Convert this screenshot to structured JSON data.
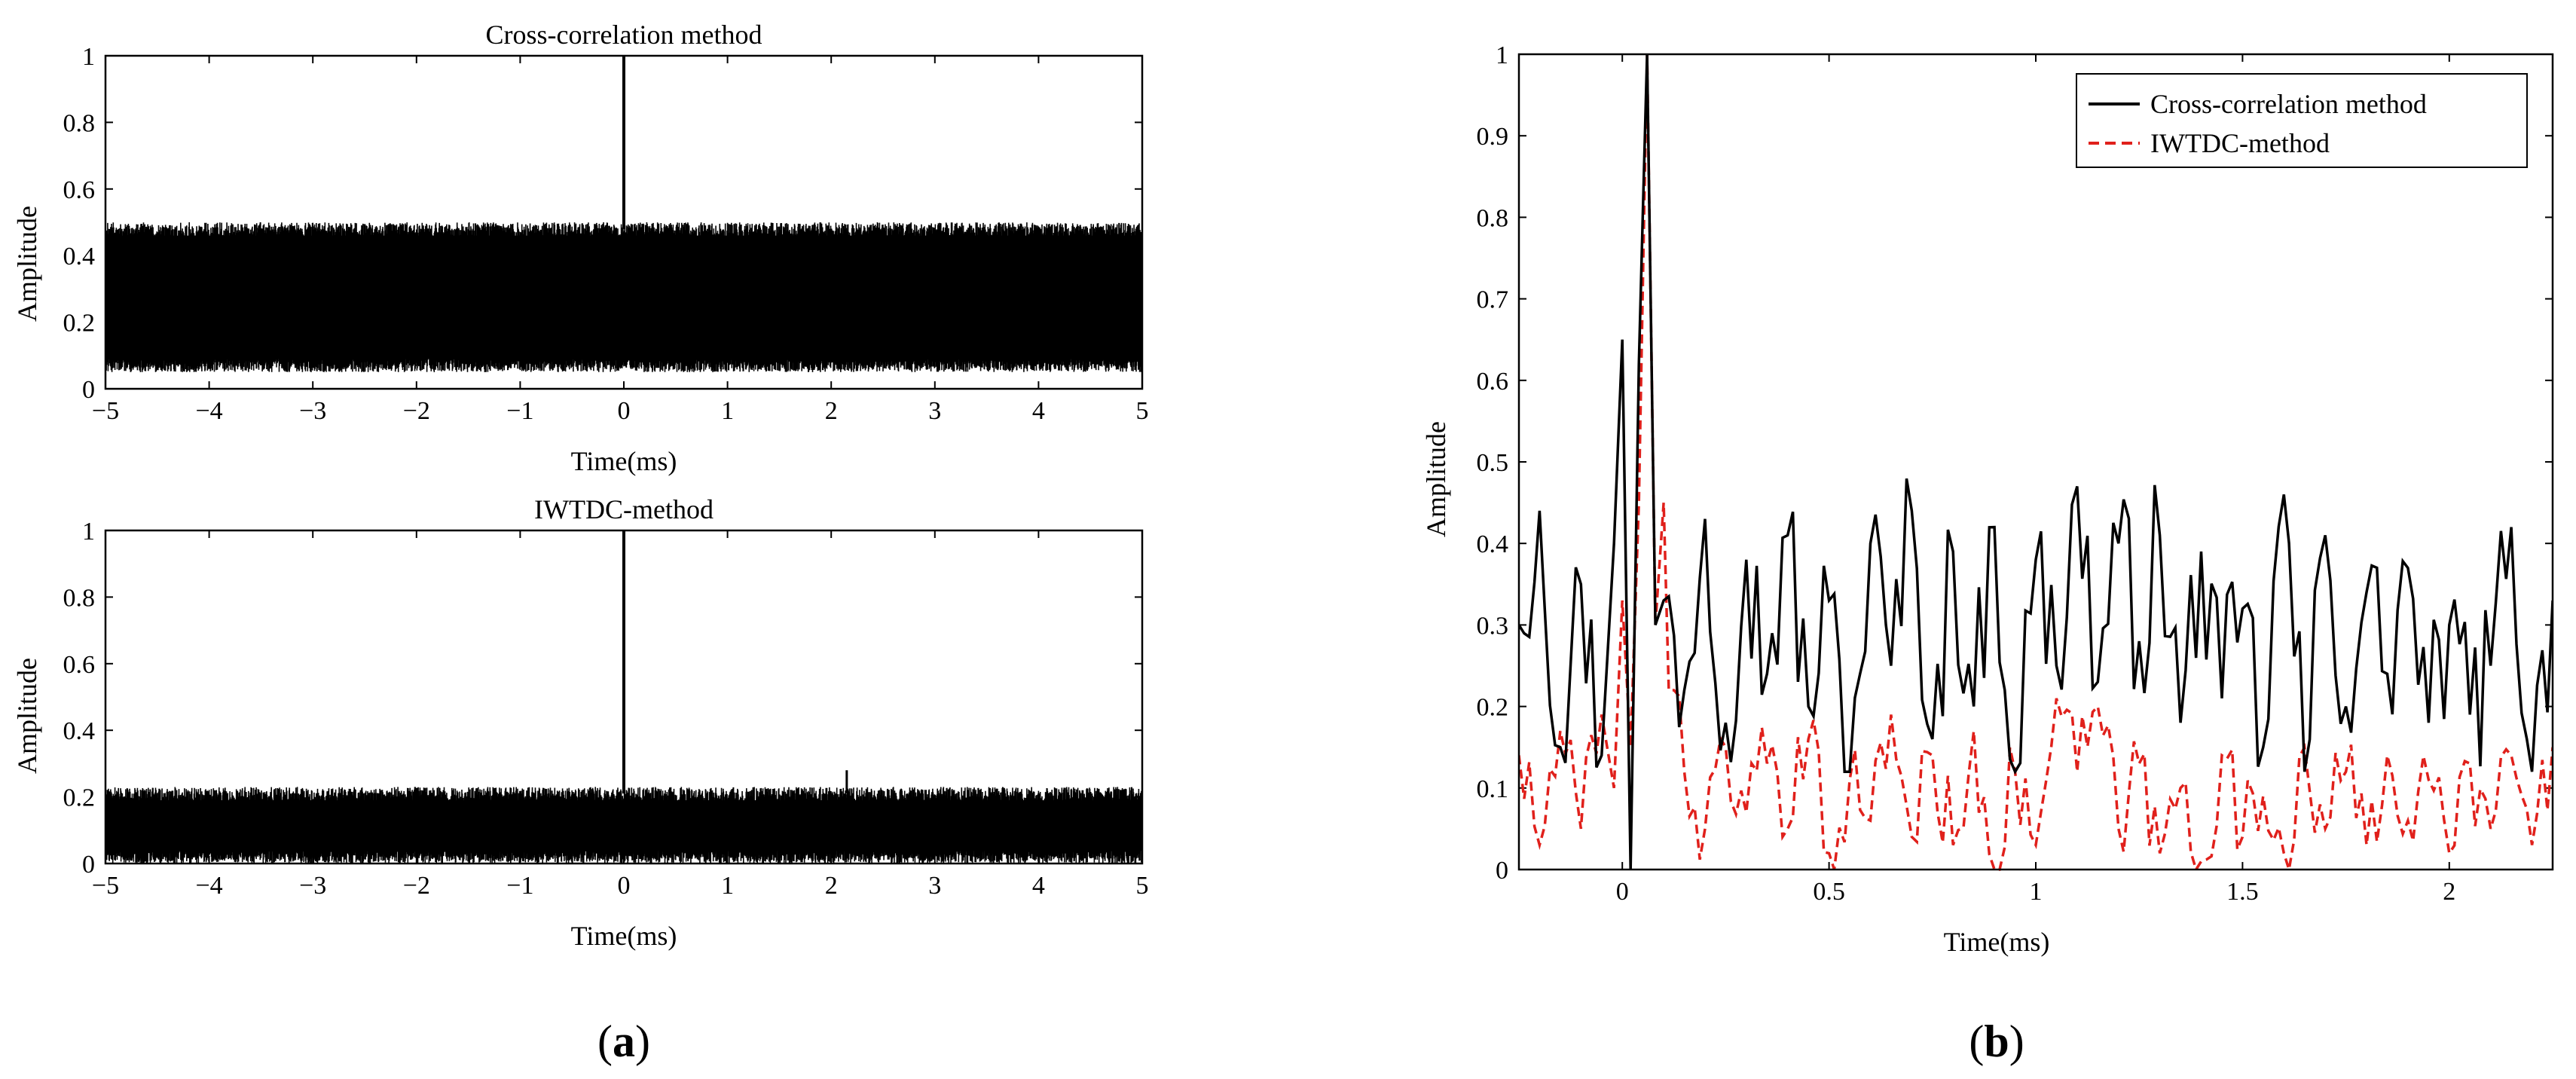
{
  "figure": {
    "panel_labels": [
      "(a)",
      "(b)"
    ],
    "panel_letters": [
      "a",
      "b"
    ]
  },
  "chart_data": [
    {
      "id": "a-top",
      "type": "line",
      "title": "Cross-correlation method",
      "xlabel": "Time(ms)",
      "ylabel": "Amplitude",
      "xlim": [
        -5,
        5
      ],
      "ylim": [
        0,
        1
      ],
      "xticks": [
        -5,
        -4,
        -3,
        -2,
        -1,
        0,
        1,
        2,
        3,
        4,
        5
      ],
      "xtick_labels": [
        "−5",
        "−4",
        "−3",
        "−2",
        "−1",
        "0",
        "1",
        "2",
        "3",
        "4",
        "5"
      ],
      "yticks": [
        0,
        0.2,
        0.4,
        0.6,
        0.8,
        1
      ],
      "ytick_labels": [
        "0",
        "0.2",
        "0.4",
        "0.6",
        "0.8",
        "1"
      ],
      "series": [
        {
          "color": "#000000",
          "description": "dense noise floor with single peak",
          "noise_band": [
            0.05,
            0.5
          ],
          "peak": {
            "x": 0,
            "y": 1
          }
        }
      ]
    },
    {
      "id": "a-bottom",
      "type": "line",
      "title": "IWTDC-method",
      "xlabel": "Time(ms)",
      "ylabel": "Amplitude",
      "xlim": [
        -5,
        5
      ],
      "ylim": [
        0,
        1
      ],
      "xticks": [
        -5,
        -4,
        -3,
        -2,
        -1,
        0,
        1,
        2,
        3,
        4,
        5
      ],
      "xtick_labels": [
        "−5",
        "−4",
        "−3",
        "−2",
        "−1",
        "0",
        "1",
        "2",
        "3",
        "4",
        "5"
      ],
      "yticks": [
        0,
        0.2,
        0.4,
        0.6,
        0.8,
        1
      ],
      "ytick_labels": [
        "0",
        "0.2",
        "0.4",
        "0.6",
        "0.8",
        "1"
      ],
      "series": [
        {
          "color": "#000000",
          "description": "dense noise floor with single peak",
          "noise_band": [
            0.0,
            0.23
          ],
          "peak": {
            "x": 0,
            "y": 1
          },
          "minor_spike": {
            "x": 2.15,
            "y": 0.28
          }
        }
      ]
    },
    {
      "id": "b",
      "type": "line",
      "title": "",
      "xlabel": "Time(ms)",
      "ylabel": "Amplitude",
      "xlim": [
        -0.25,
        2.25
      ],
      "ylim": [
        0,
        1
      ],
      "xticks": [
        0,
        0.5,
        1,
        1.5,
        2
      ],
      "xtick_labels": [
        "0",
        "0.5",
        "1",
        "1.5",
        "2"
      ],
      "yticks": [
        0,
        0.1,
        0.2,
        0.3,
        0.4,
        0.5,
        0.6,
        0.7,
        0.8,
        0.9,
        1
      ],
      "ytick_labels": [
        "0",
        "0.1",
        "0.2",
        "0.3",
        "0.4",
        "0.5",
        "0.6",
        "0.7",
        "0.8",
        "0.9",
        "1"
      ],
      "legend_position": "top-right",
      "series": [
        {
          "name": "Cross-correlation method",
          "color": "#000000",
          "style": "solid",
          "x": [
            -0.25,
            -0.2,
            -0.15,
            -0.1,
            -0.05,
            -0.02,
            0.0,
            0.02,
            0.04,
            0.06,
            0.08,
            0.1,
            0.15,
            0.2,
            0.25,
            0.3,
            0.35,
            0.4,
            0.45,
            0.5,
            0.55,
            0.6,
            0.65,
            0.7,
            0.75,
            0.8,
            0.85,
            0.9,
            0.95,
            1.0,
            1.05,
            1.1,
            1.15,
            1.2,
            1.25,
            1.3,
            1.35,
            1.4,
            1.45,
            1.5,
            1.55,
            1.6,
            1.65,
            1.7,
            1.75,
            1.8,
            1.85,
            1.9,
            1.95,
            2.0,
            2.05,
            2.1,
            2.15,
            2.2,
            2.25
          ],
          "y": [
            0.3,
            0.44,
            0.15,
            0.35,
            0.14,
            0.4,
            0.65,
            0.0,
            0.62,
            1.0,
            0.3,
            0.33,
            0.22,
            0.43,
            0.18,
            0.38,
            0.24,
            0.41,
            0.2,
            0.33,
            0.12,
            0.4,
            0.25,
            0.44,
            0.16,
            0.39,
            0.2,
            0.42,
            0.12,
            0.38,
            0.25,
            0.47,
            0.23,
            0.4,
            0.28,
            0.41,
            0.18,
            0.39,
            0.21,
            0.32,
            0.15,
            0.46,
            0.12,
            0.41,
            0.2,
            0.34,
            0.24,
            0.37,
            0.18,
            0.3,
            0.19,
            0.25,
            0.42,
            0.12,
            0.33
          ]
        },
        {
          "name": "IWTDC-method",
          "color": "#e0201b",
          "style": "dashed",
          "x": [
            -0.25,
            -0.2,
            -0.15,
            -0.1,
            -0.05,
            -0.02,
            0.0,
            0.02,
            0.04,
            0.06,
            0.08,
            0.1,
            0.15,
            0.2,
            0.25,
            0.3,
            0.35,
            0.4,
            0.45,
            0.5,
            0.55,
            0.6,
            0.65,
            0.7,
            0.75,
            0.8,
            0.85,
            0.9,
            0.95,
            1.0,
            1.05,
            1.1,
            1.15,
            1.2,
            1.25,
            1.3,
            1.35,
            1.4,
            1.45,
            1.5,
            1.55,
            1.6,
            1.65,
            1.7,
            1.75,
            1.8,
            1.85,
            1.9,
            1.95,
            2.0,
            2.05,
            2.1,
            2.15,
            2.2,
            2.25
          ],
          "y": [
            0.14,
            0.03,
            0.17,
            0.05,
            0.19,
            0.1,
            0.33,
            0.15,
            0.45,
            1.0,
            0.3,
            0.45,
            0.12,
            0.05,
            0.15,
            0.07,
            0.13,
            0.05,
            0.16,
            0.02,
            0.11,
            0.06,
            0.19,
            0.04,
            0.14,
            0.03,
            0.17,
            0.0,
            0.12,
            0.03,
            0.21,
            0.12,
            0.2,
            0.05,
            0.13,
            0.02,
            0.1,
            0.01,
            0.14,
            0.04,
            0.09,
            0.02,
            0.15,
            0.05,
            0.12,
            0.03,
            0.14,
            0.06,
            0.11,
            0.02,
            0.13,
            0.05,
            0.14,
            0.03,
            0.15
          ]
        }
      ]
    }
  ]
}
